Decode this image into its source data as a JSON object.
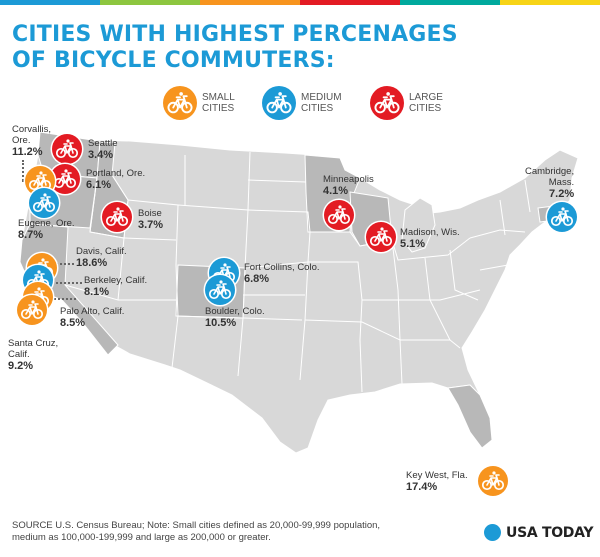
{
  "colors": {
    "title": "#1c9ad6",
    "small": "#f7941e",
    "medium": "#1c9ad6",
    "large": "#e31b23",
    "map_base": "#d8d8d8",
    "map_highlight": "#b8b8b8",
    "border": "#ffffff",
    "stripe": [
      "#1c9ad6",
      "#8dc63f",
      "#f7941e",
      "#e31b23",
      "#00a99d",
      "#f7d417"
    ]
  },
  "title": {
    "line1": "CITIES WITH HIGHEST PERCENAGES",
    "line2": "OF BICYCLE COMMUTERS:"
  },
  "legend": [
    {
      "line1": "SMALL",
      "line2": "CITIES",
      "type": "small",
      "icon": "bicycle-icon"
    },
    {
      "line1": "MEDIUM",
      "line2": "CITIES",
      "type": "medium",
      "icon": "bicycle-icon"
    },
    {
      "line1": "LARGE",
      "line2": "CITIES",
      "type": "large",
      "icon": "bicycle-icon"
    }
  ],
  "cities": [
    {
      "name": "Corvallis,",
      "name2": "Ore.",
      "pct": "11.2%",
      "type": "small"
    },
    {
      "name": "Seattle",
      "pct": "3.4%",
      "type": "large"
    },
    {
      "name": "Portland, Ore.",
      "pct": "6.1%",
      "type": "large"
    },
    {
      "name": "Eugene, Ore.",
      "pct": "8.7%",
      "type": "medium"
    },
    {
      "name": "Boise",
      "pct": "3.7%",
      "type": "large"
    },
    {
      "name": "Davis, Calif.",
      "pct": "18.6%",
      "type": "small"
    },
    {
      "name": "Berkeley, Calif.",
      "pct": "8.1%",
      "type": "medium"
    },
    {
      "name": "Palo Alto, Calif.",
      "pct": "8.5%",
      "type": "small"
    },
    {
      "name": "Santa Cruz,",
      "name2": "Calif.",
      "pct": "9.2%",
      "type": "small"
    },
    {
      "name": "Fort Collins, Colo.",
      "pct": "6.8%",
      "type": "medium"
    },
    {
      "name": "Boulder, Colo.",
      "pct": "10.5%",
      "type": "medium"
    },
    {
      "name": "Minneapolis",
      "pct": "4.1%",
      "type": "large"
    },
    {
      "name": "Madison, Wis.",
      "pct": "5.1%",
      "type": "large"
    },
    {
      "name": "Cambridge,",
      "name2": "Mass.",
      "pct": "7.2%",
      "type": "medium"
    },
    {
      "name": "Key West, Fla.",
      "pct": "17.4%",
      "type": "small"
    }
  ],
  "source": {
    "line1": "SOURCE U.S. Census Bureau; Note: Small cities defined as 20,000-99,999 population,",
    "line2": "medium as 100,000-199,999 and large as 200,000 or greater."
  },
  "brand": {
    "name": "USA TODAY"
  }
}
